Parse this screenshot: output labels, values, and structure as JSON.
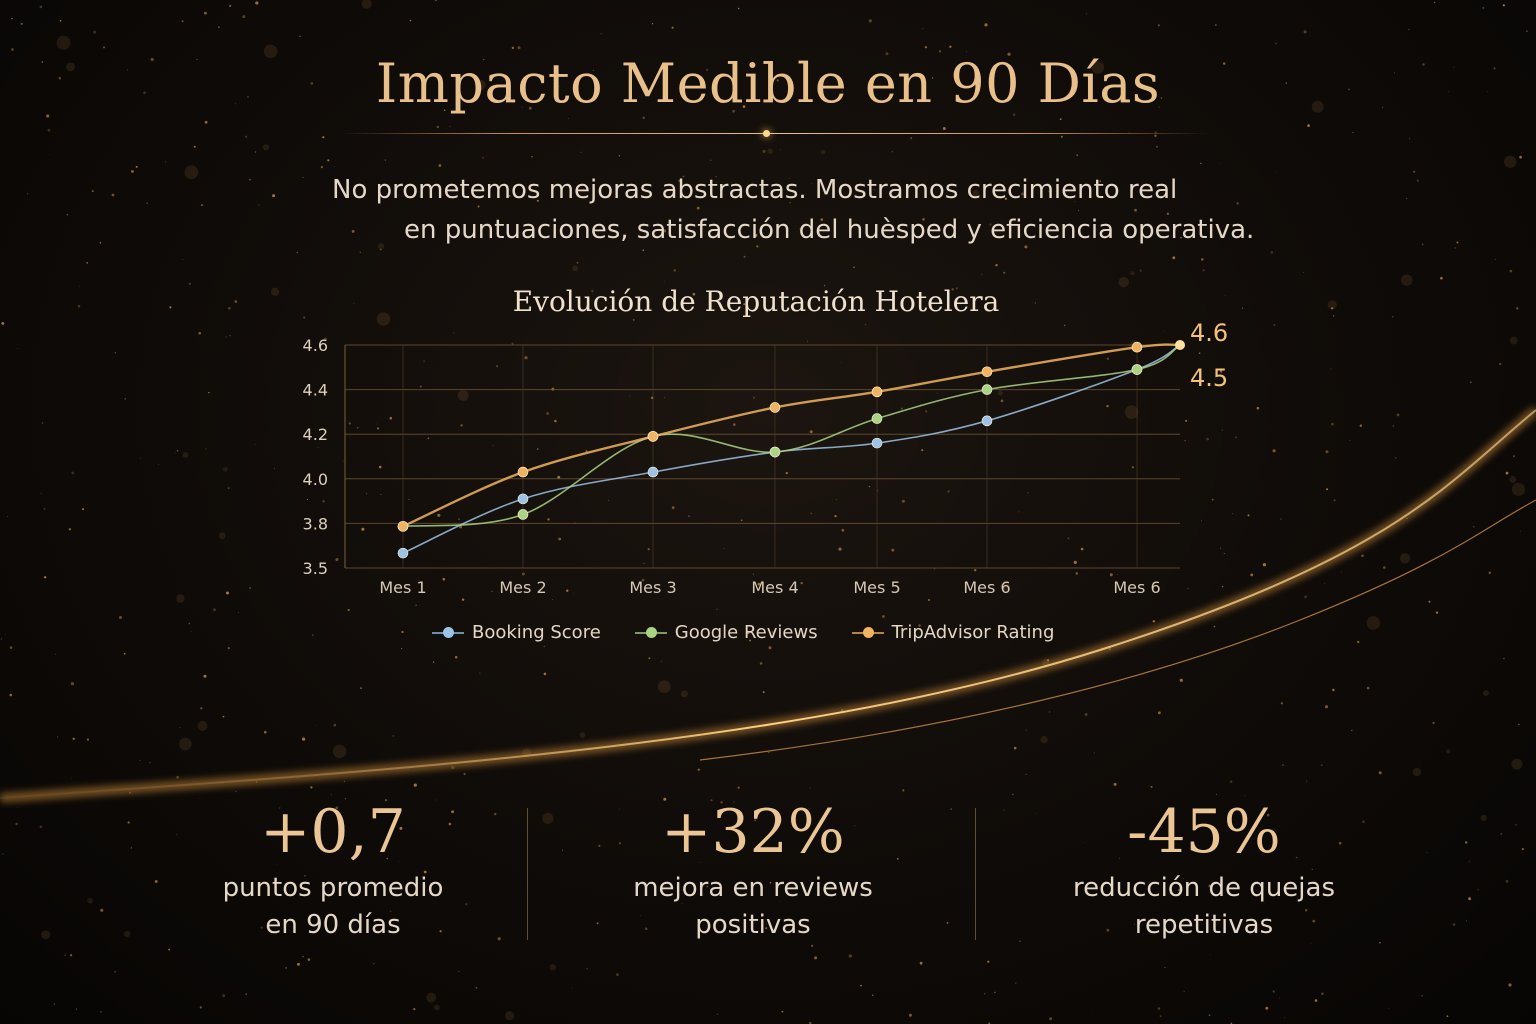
{
  "header": {
    "title": "Impacto Medible en 90 Días",
    "subtitle_line1": "No prometemos mejoras abstractas. Mostramos crecimiento real",
    "subtitle_line2": "en puntuaciones, satisfacción del huèsped y eficiencia operativa."
  },
  "chart_data": {
    "type": "line",
    "title": "Evolución de Reputación Hotelera",
    "xlabel": "",
    "ylabel": "",
    "categories": [
      "Mes 1",
      "Mes 2",
      "Mes 3",
      "Mes 4",
      "Mes 5",
      "Mes 6",
      "Mes 6"
    ],
    "y_ticks": [
      "3.5",
      "3.8",
      "4.0",
      "4.2",
      "4.4",
      "4.6"
    ],
    "ylim": [
      3.5,
      4.6
    ],
    "grid": true,
    "legend_position": "bottom",
    "series": [
      {
        "name": "Booking Score",
        "color": "#9cc3e6",
        "values": [
          3.6,
          3.91,
          4.03,
          4.12,
          4.16,
          4.26,
          4.49
        ]
      },
      {
        "name": "Google Reviews",
        "color": "#a9d483",
        "values": [
          3.78,
          3.84,
          4.19,
          4.12,
          4.27,
          4.4,
          4.49
        ]
      },
      {
        "name": "TripAdvisor Rating",
        "color": "#f0b460",
        "values": [
          3.78,
          4.03,
          4.19,
          4.32,
          4.39,
          4.48,
          4.59
        ]
      }
    ],
    "end_value": 4.6,
    "end_labels": [
      "4.6",
      "4.5"
    ]
  },
  "stats": [
    {
      "value": "+0,7",
      "label_line1": "puntos promedio",
      "label_line2": "en 90 días"
    },
    {
      "value": "+32%",
      "label_line1": "mejora en reviews",
      "label_line2": "positivas"
    },
    {
      "value": "-45%",
      "label_line1": "reducción de quejas",
      "label_line2": "repetitivas"
    }
  ],
  "colors": {
    "accent": "#e9bf8a",
    "background": "#0f0b08"
  }
}
